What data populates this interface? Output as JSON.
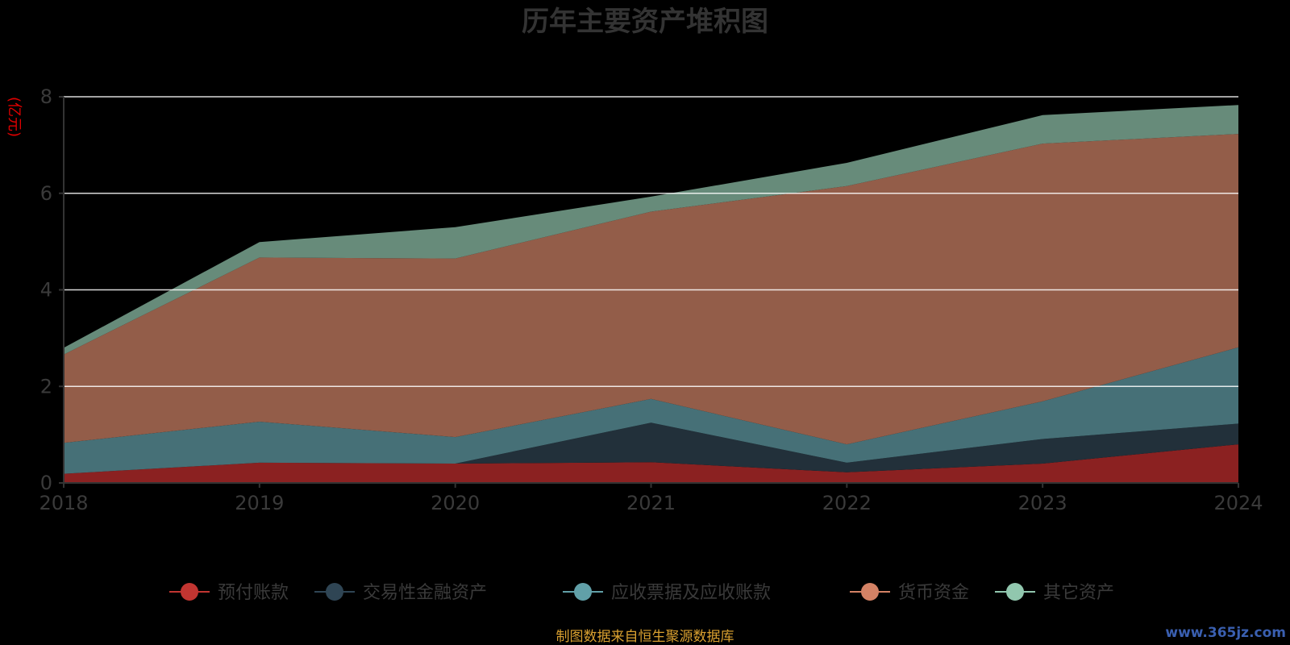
{
  "chart_data": {
    "type": "area",
    "stacked": true,
    "title": "历年主要资产堆积图",
    "unit_label": "(亿元)",
    "categories": [
      "2018",
      "2019",
      "2020",
      "2021",
      "2022",
      "2023",
      "2024"
    ],
    "ylim": [
      0,
      8
    ],
    "yticks": [
      0,
      2,
      4,
      6,
      8
    ],
    "grid": true,
    "legend_position": "bottom",
    "series": [
      {
        "name": "预付账款",
        "color": "#c23531",
        "fill": "#8b2121",
        "values": [
          0.19,
          0.42,
          0.4,
          0.43,
          0.22,
          0.4,
          0.8
        ]
      },
      {
        "name": "交易性金融资产",
        "color": "#2f4554",
        "fill": "#22303a",
        "values": [
          0.0,
          0.0,
          0.0,
          0.82,
          0.2,
          0.51,
          0.43
        ]
      },
      {
        "name": "应收票据及应收账款",
        "color": "#61a0a8",
        "fill": "#467077",
        "values": [
          0.64,
          0.85,
          0.55,
          0.49,
          0.38,
          0.78,
          1.58
        ]
      },
      {
        "name": "货币资金",
        "color": "#d48265",
        "fill": "#935d49",
        "values": [
          1.83,
          3.4,
          3.7,
          3.88,
          5.35,
          5.34,
          4.42
        ]
      },
      {
        "name": "其它资产",
        "color": "#91c7ae",
        "fill": "#678b7a",
        "values": [
          0.14,
          0.32,
          0.65,
          0.31,
          0.48,
          0.59,
          0.6
        ]
      }
    ]
  },
  "footer": {
    "source": "制图数据来自恒生聚源数据库",
    "watermark": "www.365jz.com"
  }
}
